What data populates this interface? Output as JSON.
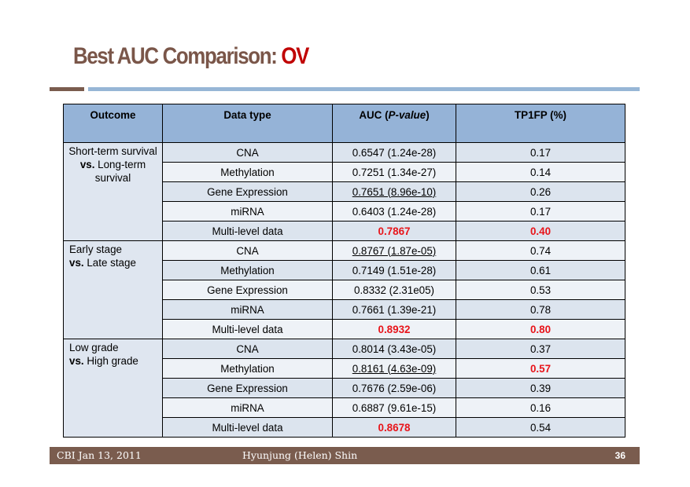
{
  "slide": {
    "title_main": "Best AUC Comparison: ",
    "title_highlight": "OV"
  },
  "table": {
    "headers": {
      "outcome": "Outcome",
      "data_type": "Data type",
      "auc_prefix": "AUC (",
      "auc_italic": "P-value",
      "auc_suffix": ")",
      "tp1fp": "TP1FP (%)"
    },
    "groups": [
      {
        "outcome_line1": "Short-term survival",
        "outcome_vs": "vs.",
        "outcome_line2": " Long-term survival",
        "rows": [
          {
            "type": "CNA",
            "auc": "0.6547 (1.24e-28)",
            "tp": "0.17"
          },
          {
            "type": "Methylation",
            "auc": "0.7251 (1.34e-27)",
            "tp": "0.14"
          },
          {
            "type": "Gene Expression",
            "auc": "0.7651 (8.96e-10)",
            "tp": "0.26"
          },
          {
            "type": "miRNA",
            "auc": "0.6403 (1.24e-28)",
            "tp": "0.17"
          },
          {
            "type": "Multi-level data",
            "auc": "0.7867",
            "tp": "0.40"
          }
        ]
      },
      {
        "outcome_line1": "Early stage",
        "outcome_vs": "vs.",
        "outcome_line2": " Late stage",
        "rows": [
          {
            "type": "CNA",
            "auc": "0.8767 (1.87e-05)",
            "tp": "0.74"
          },
          {
            "type": "Methylation",
            "auc": "0.7149 (1.51e-28)",
            "tp": "0.61"
          },
          {
            "type": "Gene Expression",
            "auc": "0.8332 (2.31e05)",
            "tp": "0.53"
          },
          {
            "type": "miRNA",
            "auc": "0.7661 (1.39e-21)",
            "tp": "0.78"
          },
          {
            "type": "Multi-level data",
            "auc": "0.8932",
            "tp": "0.80"
          }
        ]
      },
      {
        "outcome_line1": "Low grade",
        "outcome_vs": "vs.",
        "outcome_line2": " High grade",
        "rows": [
          {
            "type": "CNA",
            "auc": "0.8014 (3.43e-05)",
            "tp": "0.37"
          },
          {
            "type": "Methylation",
            "auc": "0.8161 (4.63e-09)",
            "tp": "0.57"
          },
          {
            "type": "Gene Expression",
            "auc": "0.7676 (2.59e-06)",
            "tp": "0.39"
          },
          {
            "type": "miRNA",
            "auc": "0.6887 (9.61e-15)",
            "tp": "0.16"
          },
          {
            "type": "Multi-level data",
            "auc": "0.8678",
            "tp": "0.54"
          }
        ]
      }
    ]
  },
  "footer": {
    "date": "CBI Jan 13, 2011",
    "author": "Hyunjung (Helen) Shin",
    "page": "36"
  },
  "colors": {
    "title": "#7a5649",
    "highlight": "#c00000",
    "header_bg": "#95b3d7",
    "footer_bg": "#7a5c4e",
    "emphasis_red": "#e8141a"
  }
}
